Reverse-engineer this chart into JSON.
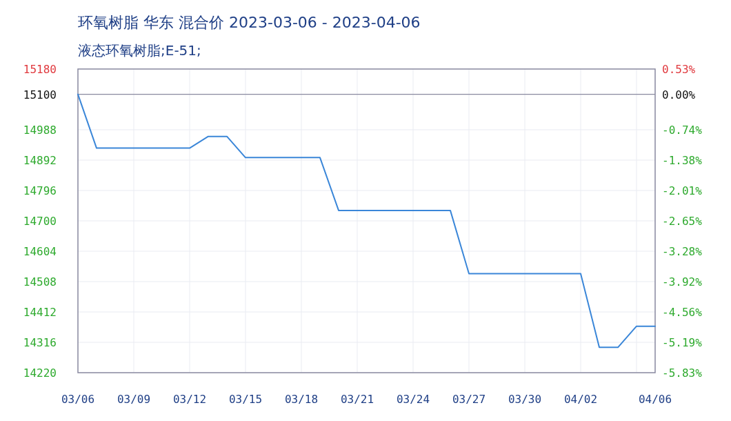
{
  "chart_data": {
    "type": "line",
    "title": "环氧树脂 华东 混合价 2023-03-06 - 2023-04-06",
    "subtitle": "液态环氧树脂;E-51;",
    "x": [
      "2023-03-06",
      "2023-03-07",
      "2023-03-08",
      "2023-03-09",
      "2023-03-10",
      "2023-03-11",
      "2023-03-12",
      "2023-03-13",
      "2023-03-14",
      "2023-03-15",
      "2023-03-16",
      "2023-03-17",
      "2023-03-18",
      "2023-03-19",
      "2023-03-20",
      "2023-03-21",
      "2023-03-22",
      "2023-03-23",
      "2023-03-24",
      "2023-03-25",
      "2023-03-26",
      "2023-03-27",
      "2023-03-28",
      "2023-03-29",
      "2023-03-30",
      "2023-03-31",
      "2023-04-01",
      "2023-04-02",
      "2023-04-03",
      "2023-04-04",
      "2023-04-05",
      "2023-04-06"
    ],
    "series": [
      {
        "color": "#3a86d8",
        "values": [
          15100,
          14930,
          14930,
          14930,
          14930,
          14930,
          14930,
          14967,
          14967,
          14900,
          14900,
          14900,
          14900,
          14900,
          14733,
          14733,
          14733,
          14733,
          14733,
          14733,
          14733,
          14533,
          14533,
          14533,
          14533,
          14533,
          14533,
          14533,
          14300,
          14300,
          14367,
          14367
        ]
      }
    ],
    "xlim": [
      "2023-03-06",
      "2023-04-06"
    ],
    "xticks": [
      {
        "value": "2023-03-06",
        "label": "03/06"
      },
      {
        "value": "2023-03-09",
        "label": "03/09"
      },
      {
        "value": "2023-03-12",
        "label": "03/12"
      },
      {
        "value": "2023-03-15",
        "label": "03/15"
      },
      {
        "value": "2023-03-18",
        "label": "03/18"
      },
      {
        "value": "2023-03-21",
        "label": "03/21"
      },
      {
        "value": "2023-03-24",
        "label": "03/24"
      },
      {
        "value": "2023-03-27",
        "label": "03/27"
      },
      {
        "value": "2023-03-30",
        "label": "03/30"
      },
      {
        "value": "2023-04-02",
        "label": "04/02"
      },
      {
        "value": "2023-04-05",
        "label": null
      },
      {
        "value": "2023-04-06",
        "label": "04/06"
      }
    ],
    "ylim": [
      14220,
      15180
    ],
    "yticks": [
      14220,
      14316,
      14412,
      14508,
      14604,
      14700,
      14796,
      14892,
      14988,
      15100,
      15180
    ],
    "y2lim": [
      -5.83,
      0.53
    ],
    "y2ticks": [
      {
        "value": -5.83,
        "label": "-5.83%"
      },
      {
        "value": -5.19,
        "label": "-5.19%"
      },
      {
        "value": -4.56,
        "label": "-4.56%"
      },
      {
        "value": -3.92,
        "label": "-3.92%"
      },
      {
        "value": -3.28,
        "label": "-3.28%"
      },
      {
        "value": -2.65,
        "label": "-2.65%"
      },
      {
        "value": -2.01,
        "label": "-2.01%"
      },
      {
        "value": -1.38,
        "label": "-1.38%"
      },
      {
        "value": -0.74,
        "label": "-0.74%"
      },
      {
        "value": 0,
        "label": "0.00%"
      },
      {
        "value": 0.53,
        "label": "0.53%"
      }
    ],
    "grid": true,
    "ref_lines": [
      {
        "axis": "y",
        "value": 15100,
        "color": "#8a8aa0"
      }
    ]
  }
}
